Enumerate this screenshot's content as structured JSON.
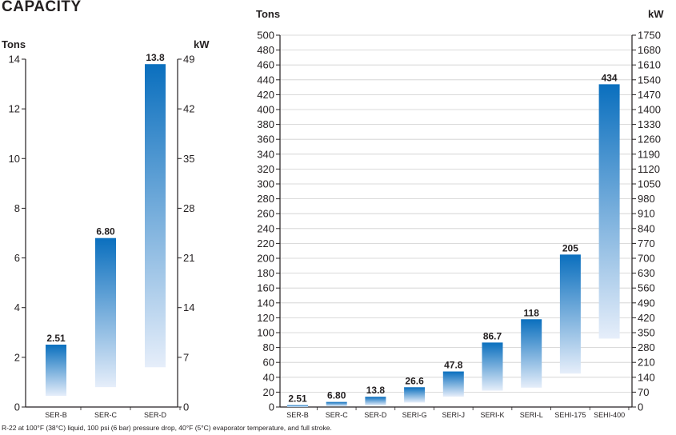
{
  "page": {
    "title": "CAPACITY",
    "footnote": "R-22 at 100°F (38°C) liquid, 100 psi (6 bar) pressure drop, 40°F (5°C) evaporator temperature, and full stroke."
  },
  "colors": {
    "bar_top": "#0a6fbe",
    "bar_bottom": "#e6eefa",
    "axis": "#231f20",
    "grid": "#cfcfcf"
  },
  "chart_data": [
    {
      "type": "bar",
      "title": "",
      "left_axis_label": "Tons",
      "right_axis_label": "kW",
      "categories": [
        "SER-B",
        "SER-C",
        "SER-D"
      ],
      "values": [
        2.51,
        6.8,
        13.8
      ],
      "data_labels": [
        "2.51",
        "6.80",
        "13.8"
      ],
      "bar_bottoms": [
        0.45,
        0.8,
        1.6
      ],
      "ylim": [
        0,
        14
      ],
      "left_ticks": [
        0,
        2,
        4,
        6,
        8,
        10,
        12,
        14
      ],
      "right_ticks": [
        0,
        7,
        14,
        21,
        28,
        35,
        42,
        49
      ],
      "grid": false
    },
    {
      "type": "bar",
      "title": "",
      "left_axis_label": "Tons",
      "right_axis_label": "kW",
      "categories": [
        "SER-B",
        "SER-C",
        "SER-D",
        "SERI-G",
        "SERI-J",
        "SERI-K",
        "SERI-L",
        "SEHI-175",
        "SEHI-400"
      ],
      "values": [
        2.51,
        6.8,
        13.8,
        26.6,
        47.8,
        86.7,
        118,
        205,
        434
      ],
      "data_labels": [
        "2.51",
        "6.80",
        "13.8",
        "26.6",
        "47.8",
        "86.7",
        "118",
        "205",
        "434"
      ],
      "bar_bottoms": [
        0,
        1,
        2,
        6,
        14,
        22,
        26,
        45,
        92
      ],
      "ylim": [
        0,
        500
      ],
      "left_ticks": [
        0,
        20,
        40,
        60,
        80,
        100,
        120,
        140,
        160,
        180,
        200,
        220,
        240,
        260,
        280,
        300,
        320,
        340,
        360,
        380,
        400,
        420,
        440,
        460,
        480,
        500
      ],
      "right_ticks": [
        0,
        70,
        140,
        210,
        280,
        350,
        420,
        490,
        560,
        630,
        700,
        770,
        840,
        910,
        980,
        1050,
        1120,
        1190,
        1260,
        1330,
        1400,
        1470,
        1540,
        1610,
        1680,
        1750
      ],
      "grid": true
    }
  ]
}
